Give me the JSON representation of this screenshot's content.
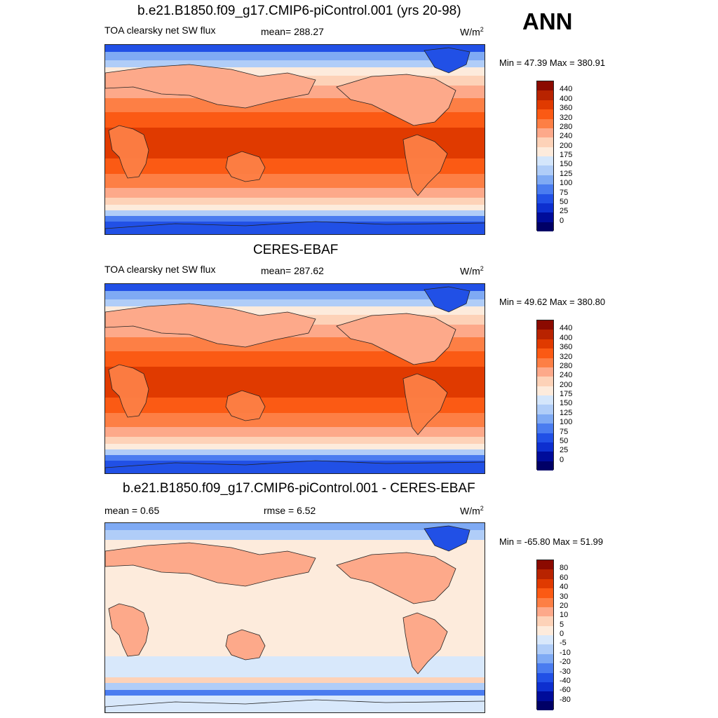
{
  "header": {
    "season": "ANN"
  },
  "panels": [
    {
      "title": "b.e21.B1850.f09_g17.CMIP6-piControl.001 (yrs 20-98)",
      "variable": "TOA clearsky net SW flux",
      "stat": "mean= 288.27",
      "units": "W/m",
      "units_sup": "2",
      "minmax": "Min =  47.39 Max = 380.91",
      "colorbar": {
        "labels": [
          "440",
          "400",
          "360",
          "320",
          "280",
          "240",
          "200",
          "175",
          "150",
          "125",
          "100",
          "75",
          "50",
          "25",
          "0"
        ],
        "colors": [
          "#8b0a00",
          "#b82300",
          "#e03a00",
          "#fb5a14",
          "#fd7f45",
          "#fda98a",
          "#fdd2b8",
          "#fdebdc",
          "#d4e6fb",
          "#b0cdf8",
          "#7faaf4",
          "#4a7cf0",
          "#2150e6",
          "#0d2fcf",
          "#000c9a",
          "#000066"
        ]
      }
    },
    {
      "title": "CERES-EBAF",
      "variable": "TOA clearsky net SW flux",
      "stat": "mean= 287.62",
      "units": "W/m",
      "units_sup": "2",
      "minmax": "Min =  49.62 Max = 380.80",
      "colorbar": {
        "labels": [
          "440",
          "400",
          "360",
          "320",
          "280",
          "240",
          "200",
          "175",
          "150",
          "125",
          "100",
          "75",
          "50",
          "25",
          "0"
        ],
        "colors": [
          "#8b0a00",
          "#b82300",
          "#e03a00",
          "#fb5a14",
          "#fd7f45",
          "#fda98a",
          "#fdd2b8",
          "#fdebdc",
          "#d4e6fb",
          "#b0cdf8",
          "#7faaf4",
          "#4a7cf0",
          "#2150e6",
          "#0d2fcf",
          "#000c9a",
          "#000066"
        ]
      }
    },
    {
      "title": "b.e21.B1850.f09_g17.CMIP6-piControl.001 - CERES-EBAF",
      "stat_left": "mean =   0.65",
      "stat": "rmse =   6.52",
      "units": "W/m",
      "units_sup": "2",
      "minmax": "Min = -65.80 Max =  51.99",
      "colorbar": {
        "labels": [
          "80",
          "60",
          "40",
          "30",
          "20",
          "10",
          "5",
          "0",
          "-5",
          "-10",
          "-20",
          "-30",
          "-40",
          "-60",
          "-80"
        ],
        "colors": [
          "#8b0a00",
          "#b82300",
          "#e03a00",
          "#fb5a14",
          "#fd7f45",
          "#fda98a",
          "#fdd2b8",
          "#fdebdc",
          "#d8e8fb",
          "#b0cdf8",
          "#7faaf4",
          "#4a7cf0",
          "#2150e6",
          "#0d2fcf",
          "#000c9a",
          "#000066"
        ]
      }
    }
  ]
}
